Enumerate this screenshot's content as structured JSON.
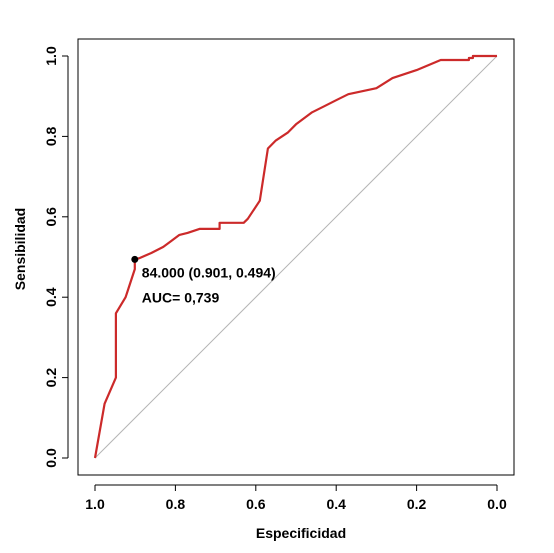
{
  "chart_data": {
    "type": "line",
    "xlabel": "Especificidad",
    "ylabel": "Sensibilidad",
    "xlim": [
      1.0,
      0.0
    ],
    "ylim": [
      0.0,
      1.0
    ],
    "x_reversed": true,
    "x_ticks": [
      1.0,
      0.8,
      0.6,
      0.4,
      0.2,
      0.0
    ],
    "x_tick_labels": [
      "1.0",
      "0.8",
      "0.6",
      "0.4",
      "0.2",
      "0.0"
    ],
    "y_ticks": [
      0.0,
      0.2,
      0.4,
      0.6,
      0.8,
      1.0
    ],
    "y_tick_labels": [
      "0.0",
      "0.2",
      "0.4",
      "0.6",
      "0.8",
      "1.0"
    ],
    "grid": false,
    "series": [
      {
        "color": "#cc2a2a",
        "x": [
          1.0,
          0.976,
          0.948,
          0.948,
          0.924,
          0.901,
          0.901,
          0.89,
          0.86,
          0.83,
          0.81,
          0.79,
          0.77,
          0.74,
          0.69,
          0.69,
          0.63,
          0.62,
          0.59,
          0.57,
          0.55,
          0.52,
          0.5,
          0.46,
          0.43,
          0.4,
          0.37,
          0.3,
          0.26,
          0.2,
          0.14,
          0.07,
          0.07,
          0.06,
          0.06,
          0.0
        ],
        "y": [
          0.0,
          0.135,
          0.2,
          0.36,
          0.4,
          0.47,
          0.494,
          0.497,
          0.51,
          0.525,
          0.54,
          0.555,
          0.56,
          0.57,
          0.57,
          0.585,
          0.585,
          0.595,
          0.64,
          0.77,
          0.79,
          0.81,
          0.83,
          0.86,
          0.875,
          0.89,
          0.905,
          0.92,
          0.945,
          0.965,
          0.99,
          0.99,
          0.995,
          0.995,
          1.0,
          1.0
        ]
      }
    ],
    "reference_line": {
      "from": [
        1.0,
        0.0
      ],
      "to": [
        0.0,
        1.0
      ],
      "color": "#b5b5b5"
    },
    "highlight_point": {
      "x": 0.901,
      "y": 0.494
    },
    "annotations": {
      "threshold_text": "84.000 (0.901, 0.494)",
      "auc_text": "AUC= 0,739"
    }
  }
}
